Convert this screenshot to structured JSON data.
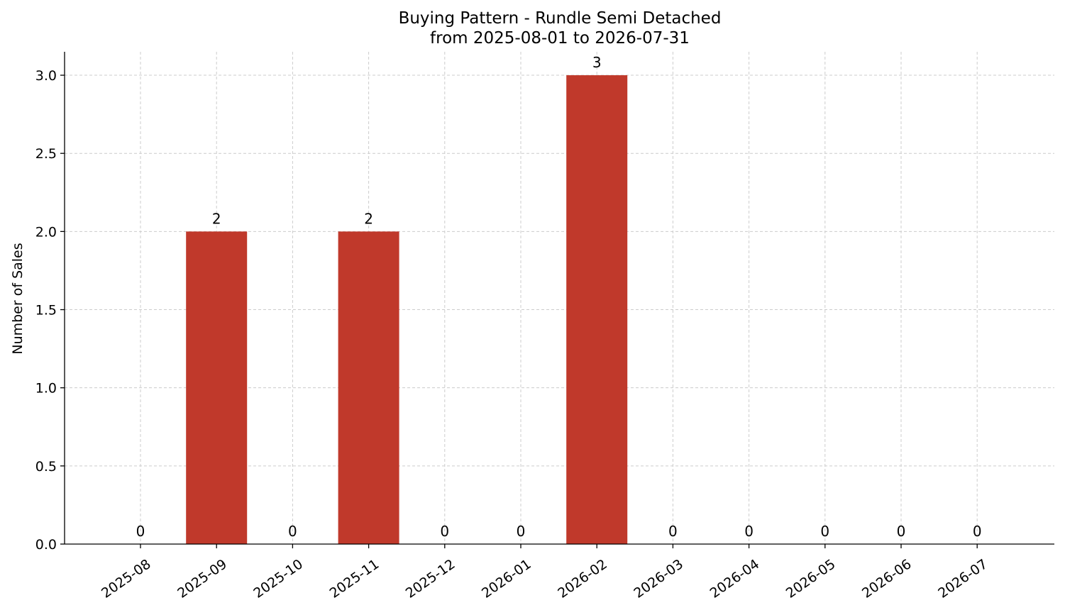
{
  "chart_data": {
    "type": "bar",
    "title": "Buying Pattern - Rundle Semi Detached",
    "subtitle": "from 2025-08-01 to 2026-07-31",
    "xlabel": "",
    "ylabel": "Number of Sales",
    "categories": [
      "2025-08",
      "2025-09",
      "2025-10",
      "2025-11",
      "2025-12",
      "2026-01",
      "2026-02",
      "2026-03",
      "2026-04",
      "2026-05",
      "2026-06",
      "2026-07"
    ],
    "values": [
      0,
      2,
      0,
      2,
      0,
      0,
      3,
      0,
      0,
      0,
      0,
      0
    ],
    "data_labels": [
      "0",
      "2",
      "0",
      "2",
      "0",
      "0",
      "3",
      "0",
      "0",
      "0",
      "0",
      "0"
    ],
    "ylim": [
      0,
      3.15
    ],
    "yticks": [
      0,
      0.5,
      1.0,
      1.5,
      2.0,
      2.5,
      3.0
    ],
    "ytick_labels": [
      "0.0",
      "0.5",
      "1.0",
      "1.5",
      "2.0",
      "2.5",
      "3.0"
    ],
    "bar_color": "#c0392b",
    "grid": true,
    "legend": "none"
  }
}
